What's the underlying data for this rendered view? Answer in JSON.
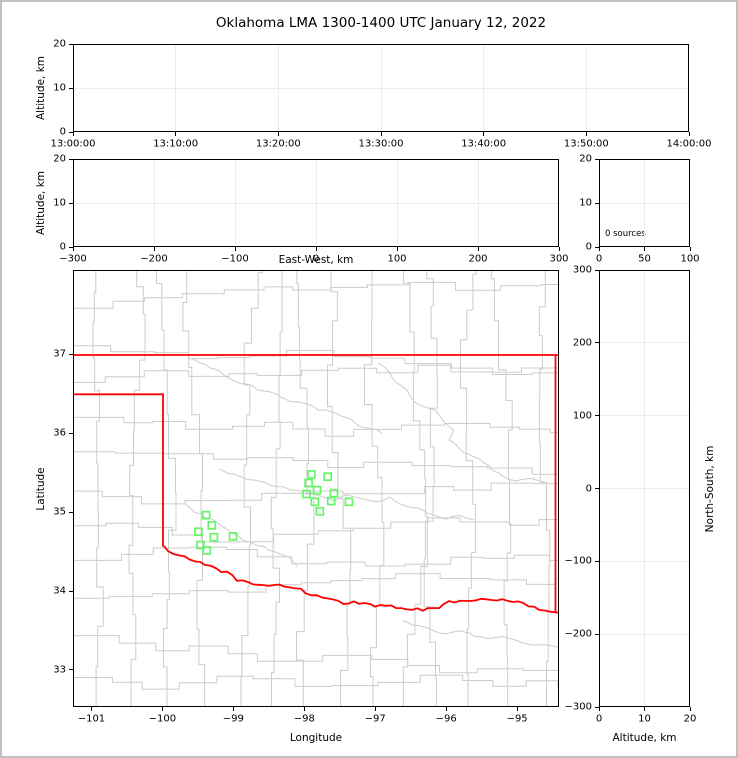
{
  "title": "Oklahoma LMA 1300-1400 UTC January 12, 2022",
  "colors": {
    "background": "#ffffff",
    "frame_border": "#c0c0c0",
    "axes_frame": "#000000",
    "grid": "#ececec",
    "county_line": "#cccccc",
    "state_border": "#ff0000",
    "station_marker": "#66f566",
    "text": "#000000"
  },
  "panels": {
    "time_height": {
      "ylabel": "Altitude, km",
      "ytick_labels": [
        "0",
        "10",
        "20"
      ],
      "xtick_labels": [
        "13:00:00",
        "13:10:00",
        "13:20:00",
        "13:30:00",
        "13:40:00",
        "13:50:00",
        "14:00:00"
      ]
    },
    "ew_height": {
      "ylabel": "Altitude, km",
      "xlabel": "East-West, km",
      "xtick_labels": [
        "−300",
        "−200",
        "−100",
        "0",
        "100",
        "200",
        "300"
      ],
      "ytick_labels": [
        "0",
        "10",
        "20"
      ]
    },
    "histogram": {
      "annotation": "0 sources",
      "xtick_labels": [
        "0",
        "50",
        "100"
      ],
      "ytick_labels": [
        "0",
        "10",
        "20"
      ]
    },
    "map": {
      "xlabel": "Longitude",
      "ylabel": "Latitude",
      "xtick_values": [
        -101,
        -100,
        -99,
        -98,
        -97,
        -96,
        -95
      ],
      "xtick_labels": [
        "−101",
        "−100",
        "−99",
        "−98",
        "−97",
        "−96",
        "−95"
      ],
      "ytick_values": [
        33,
        34,
        35,
        36,
        37
      ],
      "ytick_labels": [
        "33",
        "34",
        "35",
        "36",
        "37"
      ],
      "lon_range": [
        -101.26,
        -94.41
      ],
      "lat_range": [
        32.53,
        38.07
      ]
    },
    "ns_height": {
      "xlabel": "Altitude, km",
      "ylabel": "North-South, km",
      "xtick_labels": [
        "0",
        "10",
        "20"
      ],
      "ytick_labels": [
        "300",
        "200",
        "100",
        "0",
        "−100",
        "−200",
        "−300"
      ]
    }
  },
  "geography": {
    "north_border_lat": 37.0,
    "panhandle_lat": 36.5,
    "panhandle_corner_lon": -100.0,
    "panhandle_corner_south_lat": 34.56,
    "east_border_lon": -94.445,
    "red_river": [
      [
        -100.0,
        34.56
      ],
      [
        -99.85,
        34.45
      ],
      [
        -99.7,
        34.43
      ],
      [
        -99.55,
        34.36
      ],
      [
        -99.4,
        34.34
      ],
      [
        -99.25,
        34.27
      ],
      [
        -99.1,
        34.23
      ],
      [
        -98.95,
        34.14
      ],
      [
        -98.8,
        34.1
      ],
      [
        -98.65,
        34.08
      ],
      [
        -98.5,
        34.07
      ],
      [
        -98.35,
        34.09
      ],
      [
        -98.2,
        34.03
      ],
      [
        -98.05,
        34.02
      ],
      [
        -97.9,
        33.93
      ],
      [
        -97.75,
        33.92
      ],
      [
        -97.6,
        33.88
      ],
      [
        -97.45,
        33.83
      ],
      [
        -97.3,
        33.85
      ],
      [
        -97.15,
        33.84
      ],
      [
        -97.0,
        33.79
      ],
      [
        -96.85,
        33.82
      ],
      [
        -96.7,
        33.78
      ],
      [
        -96.55,
        33.77
      ],
      [
        -96.4,
        33.76
      ],
      [
        -96.25,
        33.76
      ],
      [
        -96.1,
        33.79
      ],
      [
        -95.95,
        33.85
      ],
      [
        -95.8,
        33.87
      ],
      [
        -95.65,
        33.87
      ],
      [
        -95.5,
        33.89
      ],
      [
        -95.35,
        33.89
      ],
      [
        -95.2,
        33.89
      ],
      [
        -95.05,
        33.87
      ],
      [
        -94.9,
        33.83
      ],
      [
        -94.75,
        33.78
      ],
      [
        -94.6,
        33.75
      ],
      [
        -94.41,
        33.72
      ]
    ],
    "rivers": [
      [
        [
          -96.95,
          36.9
        ],
        [
          -96.8,
          36.78
        ],
        [
          -96.72,
          36.65
        ],
        [
          -96.55,
          36.55
        ],
        [
          -96.45,
          36.42
        ],
        [
          -96.3,
          36.33
        ],
        [
          -96.15,
          36.28
        ],
        [
          -96.0,
          36.15
        ],
        [
          -95.9,
          36.05
        ],
        [
          -95.95,
          35.92
        ],
        [
          -95.8,
          35.8
        ],
        [
          -95.6,
          35.7
        ],
        [
          -95.4,
          35.6
        ],
        [
          -95.2,
          35.45
        ],
        [
          -95.0,
          35.4
        ],
        [
          -94.8,
          35.42
        ],
        [
          -94.6,
          35.38
        ]
      ],
      [
        [
          -99.2,
          35.55
        ],
        [
          -99.0,
          35.48
        ],
        [
          -98.8,
          35.42
        ],
        [
          -98.6,
          35.4
        ],
        [
          -98.4,
          35.32
        ],
        [
          -98.2,
          35.3
        ],
        [
          -98.0,
          35.25
        ],
        [
          -97.8,
          35.2
        ],
        [
          -97.6,
          35.15
        ],
        [
          -97.4,
          35.22
        ],
        [
          -97.2,
          35.18
        ],
        [
          -97.0,
          35.12
        ],
        [
          -96.8,
          35.18
        ],
        [
          -96.6,
          35.1
        ],
        [
          -96.4,
          35.05
        ],
        [
          -96.2,
          34.98
        ],
        [
          -96.0,
          34.92
        ],
        [
          -95.8,
          34.95
        ],
        [
          -95.6,
          34.9
        ]
      ],
      [
        [
          -99.6,
          36.95
        ],
        [
          -99.4,
          36.88
        ],
        [
          -99.2,
          36.78
        ],
        [
          -99.0,
          36.68
        ],
        [
          -98.8,
          36.62
        ],
        [
          -98.6,
          36.55
        ],
        [
          -98.4,
          36.5
        ],
        [
          -98.2,
          36.42
        ],
        [
          -98.0,
          36.38
        ],
        [
          -97.8,
          36.3
        ],
        [
          -97.6,
          36.28
        ],
        [
          -97.4,
          36.2
        ],
        [
          -97.2,
          36.1
        ],
        [
          -97.0,
          36.05
        ],
        [
          -96.9,
          36.0
        ]
      ],
      [
        [
          -99.7,
          35.1
        ],
        [
          -99.55,
          35.0
        ],
        [
          -99.4,
          34.93
        ],
        [
          -99.25,
          34.88
        ],
        [
          -99.1,
          34.8
        ],
        [
          -98.95,
          34.7
        ],
        [
          -98.8,
          34.62
        ],
        [
          -98.65,
          34.58
        ],
        [
          -98.5,
          34.52
        ],
        [
          -98.35,
          34.48
        ],
        [
          -98.2,
          34.4
        ],
        [
          -98.1,
          34.3
        ]
      ],
      [
        [
          -96.6,
          33.62
        ],
        [
          -96.4,
          33.55
        ],
        [
          -96.2,
          33.5
        ],
        [
          -96.0,
          33.45
        ],
        [
          -95.8,
          33.5
        ],
        [
          -95.6,
          33.42
        ],
        [
          -95.4,
          33.38
        ],
        [
          -95.2,
          33.42
        ],
        [
          -95.0,
          33.35
        ],
        [
          -94.8,
          33.3
        ],
        [
          -94.6,
          33.32
        ],
        [
          -94.41,
          33.28
        ]
      ]
    ]
  },
  "chart_data": {
    "type": "scatter",
    "title": "Oklahoma LMA 1300-1400 UTC January 12, 2022",
    "source_count": 0,
    "legend_position": "none",
    "grid": true,
    "subplots": [
      {
        "name": "altitude_vs_time",
        "xticks": [
          "13:00:00",
          "13:10:00",
          "13:20:00",
          "13:30:00",
          "13:40:00",
          "13:50:00",
          "14:00:00"
        ],
        "ylabel": "Altitude, km",
        "ylim": [
          0,
          20
        ],
        "yticks": [
          0,
          10,
          20
        ],
        "points": []
      },
      {
        "name": "altitude_vs_east_west",
        "xlabel": "East-West, km",
        "xlim": [
          -300,
          300
        ],
        "xticks": [
          -300,
          -200,
          -100,
          0,
          100,
          200,
          300
        ],
        "ylabel": "Altitude, km",
        "ylim": [
          0,
          20
        ],
        "yticks": [
          0,
          10,
          20
        ],
        "points": []
      },
      {
        "name": "source_count_histogram",
        "xlim": [
          0,
          100
        ],
        "xticks": [
          0,
          50,
          100
        ],
        "ylim": [
          0,
          20
        ],
        "yticks": [
          0,
          10,
          20
        ],
        "annotation": "0 sources",
        "points": []
      },
      {
        "name": "plan_view_map",
        "xlabel": "Longitude",
        "ylabel": "Latitude",
        "xlim": [
          -101.26,
          -94.41
        ],
        "xticks": [
          -101,
          -100,
          -99,
          -98,
          -97,
          -96,
          -95
        ],
        "ylim": [
          32.53,
          38.07
        ],
        "yticks": [
          33,
          34,
          35,
          36,
          37
        ],
        "points": [],
        "lma_stations_lon_lat": [
          [
            -99.39,
            34.96
          ],
          [
            -99.31,
            34.83
          ],
          [
            -99.5,
            34.75
          ],
          [
            -99.28,
            34.68
          ],
          [
            -99.01,
            34.69
          ],
          [
            -99.47,
            34.58
          ],
          [
            -99.38,
            34.51
          ],
          [
            -97.9,
            35.48
          ],
          [
            -97.67,
            35.45
          ],
          [
            -97.94,
            35.37
          ],
          [
            -97.82,
            35.28
          ],
          [
            -97.97,
            35.23
          ],
          [
            -97.58,
            35.24
          ],
          [
            -97.85,
            35.13
          ],
          [
            -97.62,
            35.14
          ],
          [
            -97.37,
            35.13
          ],
          [
            -97.78,
            35.01
          ]
        ]
      },
      {
        "name": "north_south_vs_altitude",
        "xlabel": "Altitude, km",
        "xlim": [
          0,
          20
        ],
        "xticks": [
          0,
          10,
          20
        ],
        "ylabel": "North-South, km",
        "ylim": [
          -300,
          300
        ],
        "yticks": [
          -300,
          -200,
          -100,
          0,
          100,
          200,
          300
        ],
        "points": []
      }
    ]
  }
}
